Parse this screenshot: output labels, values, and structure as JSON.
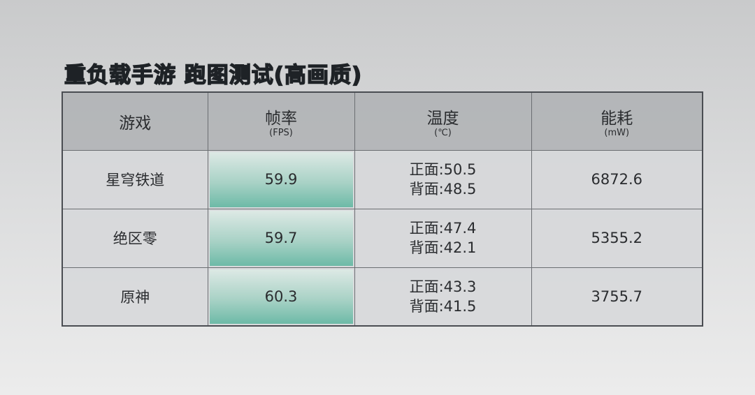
{
  "title": "重负载手游 跑图测试(高画质)",
  "headers": [
    {
      "label": "游戏",
      "unit": ""
    },
    {
      "label": "帧率",
      "unit": "(FPS)"
    },
    {
      "label": "温度",
      "unit": "(℃)"
    },
    {
      "label": "能耗",
      "unit": "(mW)"
    }
  ],
  "rows": [
    {
      "game": "星穹铁道",
      "fps": "59.9",
      "temp_front": "正面:50.5",
      "temp_back": "背面:48.5",
      "power": "6872.6"
    },
    {
      "game": "绝区零",
      "fps": "59.7",
      "temp_front": "正面:47.4",
      "temp_back": "背面:42.1",
      "power": "5355.2"
    },
    {
      "game": "原神",
      "fps": "60.3",
      "temp_front": "正面:43.3",
      "temp_back": "背面:41.5",
      "power": "3755.7"
    }
  ],
  "colors": {
    "fps_highlight": "#6dbaa7",
    "header_bg": "#b3b5b8",
    "title": "#1e2226"
  }
}
